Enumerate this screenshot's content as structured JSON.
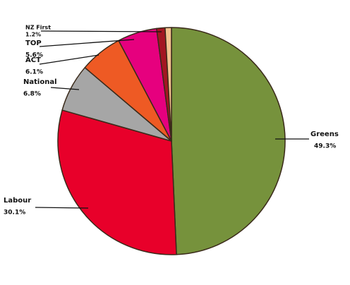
{
  "chart_data": {
    "type": "pie",
    "categories": [
      "Greens",
      "Labour",
      "National",
      "ACT",
      "TOP",
      "NZ First",
      null
    ],
    "values": [
      49.3,
      30.1,
      6.8,
      6.1,
      5.6,
      1.2,
      0.9
    ],
    "value_labels": [
      "49.3%",
      "30.1%",
      "6.8%",
      "6.1%",
      "5.6%",
      "1.2%",
      null
    ],
    "colors": [
      "#76923c",
      "#e8002a",
      "#a6a6a6",
      "#ee5a24",
      "#e6007e",
      "#a31621",
      "#f4c28f"
    ]
  }
}
